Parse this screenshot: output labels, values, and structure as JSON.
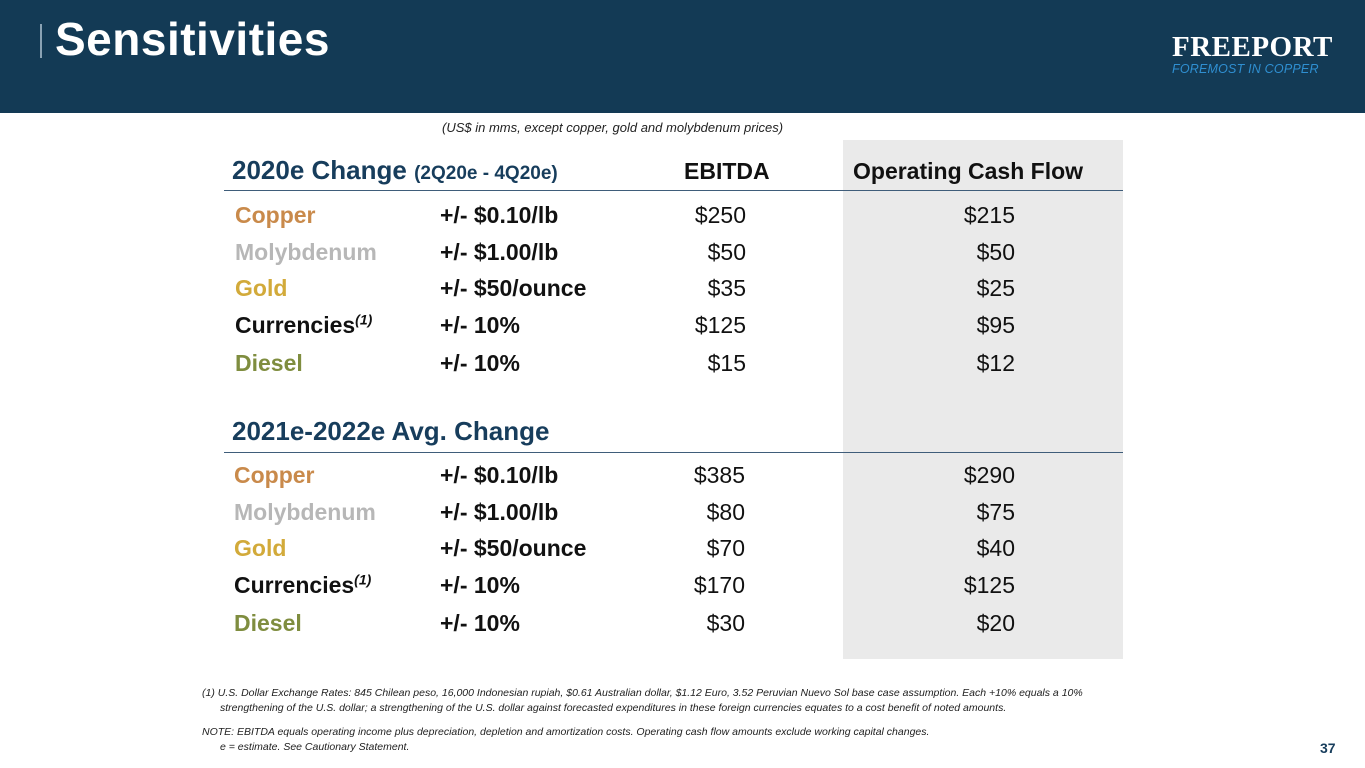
{
  "header": {
    "title": "Sensitivities",
    "logo_name": "FREEPORT",
    "logo_tagline": "FOREMOST IN COPPER"
  },
  "subtitle": "(US$ in mms, except copper, gold and molybdenum prices)",
  "columns": {
    "ebitda": "EBITDA",
    "ocf": "Operating Cash Flow"
  },
  "sections": [
    {
      "title": "2020e Change",
      "title_sub": "(2Q20e - 4Q20e)",
      "rows": [
        {
          "commodity": "Copper",
          "footnote": "",
          "change": "+/- $0.10/lb",
          "ebitda": "$250",
          "ocf": "$215"
        },
        {
          "commodity": "Molybdenum",
          "footnote": "",
          "change": "+/- $1.00/lb",
          "ebitda": "$50",
          "ocf": "$50"
        },
        {
          "commodity": "Gold",
          "footnote": "",
          "change": "+/- $50/ounce",
          "ebitda": "$35",
          "ocf": "$25"
        },
        {
          "commodity": "Currencies",
          "footnote": "(1)",
          "change": "+/- 10%",
          "ebitda": "$125",
          "ocf": "$95"
        },
        {
          "commodity": "Diesel",
          "footnote": "",
          "change": "+/- 10%",
          "ebitda": "$15",
          "ocf": "$12"
        }
      ]
    },
    {
      "title": "2021e-2022e Avg. Change",
      "title_sub": "",
      "rows": [
        {
          "commodity": "Copper",
          "footnote": "",
          "change": "+/- $0.10/lb",
          "ebitda": "$385",
          "ocf": "$290"
        },
        {
          "commodity": "Molybdenum",
          "footnote": "",
          "change": "+/- $1.00/lb",
          "ebitda": "$80",
          "ocf": "$75"
        },
        {
          "commodity": "Gold",
          "footnote": "",
          "change": "+/- $50/ounce",
          "ebitda": "$70",
          "ocf": "$40"
        },
        {
          "commodity": "Currencies",
          "footnote": "(1)",
          "change": "+/- 10%",
          "ebitda": "$170",
          "ocf": "$125"
        },
        {
          "commodity": "Diesel",
          "footnote": "",
          "change": "+/- 10%",
          "ebitda": "$30",
          "ocf": "$20"
        }
      ]
    }
  ],
  "footnotes": {
    "note1_line1": "(1)  U.S. Dollar Exchange Rates: 845 Chilean peso, 16,000 Indonesian rupiah, $0.61 Australian dollar, $1.12 Euro, 3.52 Peruvian Nuevo Sol base case assumption. Each +10% equals a 10%",
    "note1_line2": "strengthening of the U.S. dollar; a strengthening of the U.S. dollar against forecasted expenditures in these foreign currencies equates to a cost benefit of noted amounts.",
    "note2_line1": "NOTE: EBITDA equals operating income plus depreciation, depletion and amortization costs. Operating cash flow amounts exclude working capital changes.",
    "note2_line2": "e = estimate. See Cautionary Statement."
  },
  "page_number": "37",
  "colors": {
    "header_bg": "#133a55",
    "title_blue": "#173d5c",
    "copper": "#c98a4b",
    "molybdenum": "#b7b7b7",
    "gold": "#d2aa3a",
    "currencies": "#111111",
    "diesel": "#7f8d3f",
    "ocf_panel": "#eaeaea"
  }
}
